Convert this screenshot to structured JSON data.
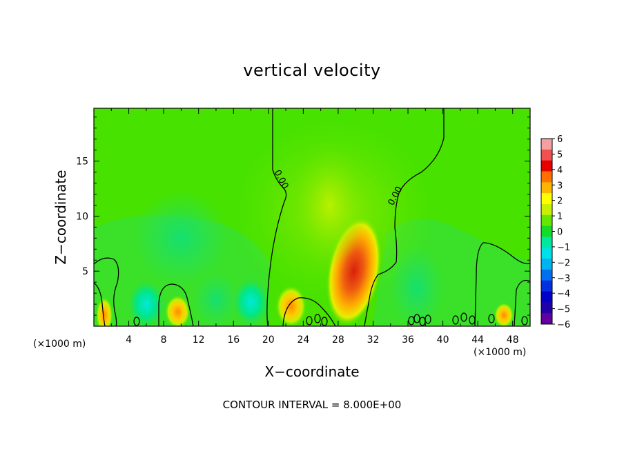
{
  "chart_data": {
    "type": "heatmap",
    "title": "vertical velocity",
    "xlabel": "X−coordinate",
    "ylabel": "Z−coordinate",
    "x_unit": "(×1000 m)",
    "y_unit": "(×1000 m)",
    "xlim": [
      0,
      50
    ],
    "ylim": [
      0,
      19.8
    ],
    "xticks": [
      4,
      8,
      12,
      16,
      20,
      24,
      28,
      32,
      36,
      40,
      44,
      48
    ],
    "yticks": [
      5,
      10,
      15
    ],
    "colorbar": {
      "ticks": [
        6,
        5,
        4,
        3,
        2,
        1,
        0,
        -1,
        -2,
        -3,
        -4,
        -5,
        -6
      ],
      "tick_labels": [
        "6",
        "5",
        "4",
        "3",
        "2",
        "1",
        "0",
        "−1",
        "−2",
        "−3",
        "−4",
        "−5",
        "−6"
      ],
      "range": [
        -6,
        6
      ]
    },
    "contour_label": "0.00",
    "contour_note": "CONTOUR INTERVAL = 8.000E+00",
    "features": [
      {
        "x": 29.8,
        "z": 5.0,
        "value": 4.0
      },
      {
        "x": 22.6,
        "z": 1.8,
        "value": 2.8
      },
      {
        "x": 9.6,
        "z": 1.3,
        "value": 2.2
      },
      {
        "x": 1.2,
        "z": 1.0,
        "value": 2.2
      },
      {
        "x": 47.0,
        "z": 1.0,
        "value": 2.0
      },
      {
        "x": 27.0,
        "z": 11.0,
        "value": 1.2
      },
      {
        "x": 6.0,
        "z": 2.0,
        "value": -1.7
      },
      {
        "x": 14.0,
        "z": 2.4,
        "value": -1.3
      },
      {
        "x": 18.0,
        "z": 2.2,
        "value": -1.6
      },
      {
        "x": 37.0,
        "z": 3.5,
        "value": -1.4
      },
      {
        "x": 10.0,
        "z": 8.0,
        "value": -0.6
      }
    ]
  }
}
